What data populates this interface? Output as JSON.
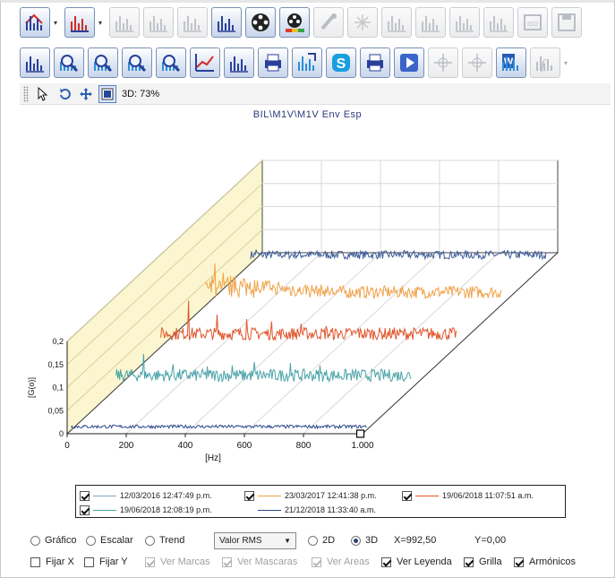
{
  "chart_title": "BIL\\M1V\\M1V Env Esp",
  "toolbar_row1": [
    {
      "icon": "house-spectrum-icon",
      "disabled": false,
      "dropdown": true
    },
    {
      "icon": "waterfall-spectrum-icon",
      "disabled": false,
      "dropdown": true
    },
    {
      "icon": "bars-icon",
      "disabled": true
    },
    {
      "icon": "spectrum-arrow-icon",
      "disabled": true
    },
    {
      "icon": "spectrum-compare-icon",
      "disabled": true
    },
    {
      "icon": "spectrum-color-icon",
      "disabled": false
    },
    {
      "icon": "reel-icon",
      "disabled": false
    },
    {
      "icon": "color-reel-icon",
      "disabled": false
    },
    {
      "icon": "brush-icon",
      "disabled": true
    },
    {
      "icon": "sparkle-icon",
      "disabled": true
    },
    {
      "icon": "spectrum-cursor-icon",
      "disabled": true
    },
    {
      "icon": "spectrum-box-icon",
      "disabled": true
    },
    {
      "icon": "spectrum-stack-icon",
      "disabled": true
    },
    {
      "icon": "spectrum-up-icon",
      "disabled": true
    },
    {
      "icon": "iso-icon",
      "disabled": true
    },
    {
      "icon": "save-spectrum-icon",
      "disabled": true
    }
  ],
  "toolbar_row2": [
    {
      "icon": "cursor-spectrum-icon",
      "disabled": false
    },
    {
      "icon": "zoom-icon",
      "disabled": false
    },
    {
      "icon": "zoom-fit-icon",
      "disabled": false
    },
    {
      "icon": "zoom-min-icon",
      "disabled": false
    },
    {
      "icon": "zoom-reset-icon",
      "disabled": false
    },
    {
      "icon": "trend-chart-icon",
      "disabled": false
    },
    {
      "icon": "spectrum-peaks-icon",
      "disabled": false
    },
    {
      "icon": "print-spectrum-icon",
      "disabled": false
    },
    {
      "icon": "export-spectrum-icon",
      "disabled": false
    },
    {
      "icon": "skype-icon",
      "disabled": false
    },
    {
      "icon": "print-icon",
      "disabled": false
    },
    {
      "icon": "play-icon",
      "disabled": false
    },
    {
      "icon": "crosshair-icon",
      "disabled": true
    },
    {
      "icon": "crosshair-dual-icon",
      "disabled": true
    },
    {
      "icon": "word-export-icon",
      "disabled": false
    },
    {
      "icon": "formula-icon",
      "disabled": true,
      "dropdown": true
    }
  ],
  "view_strip": {
    "zoom_label": "3D: 73%"
  },
  "chart_data": {
    "type": "line",
    "mode": "3d-waterfall",
    "xlabel": "[Hz]",
    "ylabel": "[G(o)]",
    "xlim": [
      0,
      1000
    ],
    "ylim": [
      0,
      0.2
    ],
    "x_ticks": [
      "0",
      "200",
      "400",
      "600",
      "800",
      "1.000"
    ],
    "y_ticks": [
      "0",
      "0,05",
      "0,1",
      "0,15",
      "0,2"
    ],
    "series": [
      {
        "color": "#2d4b8c",
        "baseline": 0.008,
        "peaks": []
      },
      {
        "color": "#4aa3a8",
        "baseline": 0.03,
        "peaks": [
          [
            95,
            0.075
          ],
          [
            195,
            0.052
          ],
          [
            310,
            0.048
          ],
          [
            395,
            0.05
          ],
          [
            470,
            0.057
          ],
          [
            590,
            0.055
          ],
          [
            690,
            0.05
          ]
        ]
      },
      {
        "color": "#e0542a",
        "baseline": 0.03,
        "peaks": [
          [
            95,
            0.1
          ],
          [
            190,
            0.07
          ],
          [
            290,
            0.06
          ],
          [
            375,
            0.055
          ],
          [
            475,
            0.05
          ],
          [
            560,
            0.045
          ],
          [
            670,
            0.04
          ]
        ]
      },
      {
        "color": "#f0a24a",
        "baseline": 0.03,
        "peaks": [
          [
            30,
            0.09
          ],
          [
            60,
            0.07
          ],
          [
            100,
            0.06
          ],
          [
            150,
            0.05
          ],
          [
            200,
            0.045
          ],
          [
            250,
            0.04
          ]
        ]
      },
      {
        "color": "#3c5c98",
        "baseline": 0.02,
        "peaks": [
          [
            20,
            0.03
          ]
        ]
      }
    ]
  },
  "legend": {
    "items": [
      {
        "label": "12/03/2016 12:47:49 p.m.",
        "color": "#7fa6c8"
      },
      {
        "label": "23/03/2017 12:41:38 p.m.",
        "color": "#f0a24a"
      },
      {
        "label": "19/06/2018 11:07:51 a.m.",
        "color": "#e0542a"
      },
      {
        "label": "19/06/2018 12:08:19 p.m.",
        "color": "#4aa3a8"
      },
      {
        "label": "21/12/2018 11:33:40 a.m.",
        "color": "#2d4b8c"
      }
    ]
  },
  "controls": {
    "graph_mode": {
      "options": [
        "Gráfico",
        "Escalar",
        "Trend"
      ],
      "selected": null
    },
    "value_select": "Valor RMS",
    "dim_mode": {
      "options": [
        "2D",
        "3D"
      ],
      "selected": "3D"
    },
    "x_readout": "X=992,50",
    "y_readout": "Y=0,00",
    "checks": [
      {
        "label": "Fijar X",
        "checked": false,
        "disabled": false
      },
      {
        "label": "Fijar Y",
        "checked": false,
        "disabled": false
      },
      {
        "label": "Ver Marcas",
        "checked": true,
        "disabled": true
      },
      {
        "label": "Ver Mascaras",
        "checked": true,
        "disabled": true
      },
      {
        "label": "Ver Areas",
        "checked": true,
        "disabled": true
      },
      {
        "label": "Ver Leyenda",
        "checked": true,
        "disabled": false
      },
      {
        "label": "Grilla",
        "checked": true,
        "disabled": false
      },
      {
        "label": "Armónicos",
        "checked": true,
        "disabled": false
      }
    ]
  }
}
